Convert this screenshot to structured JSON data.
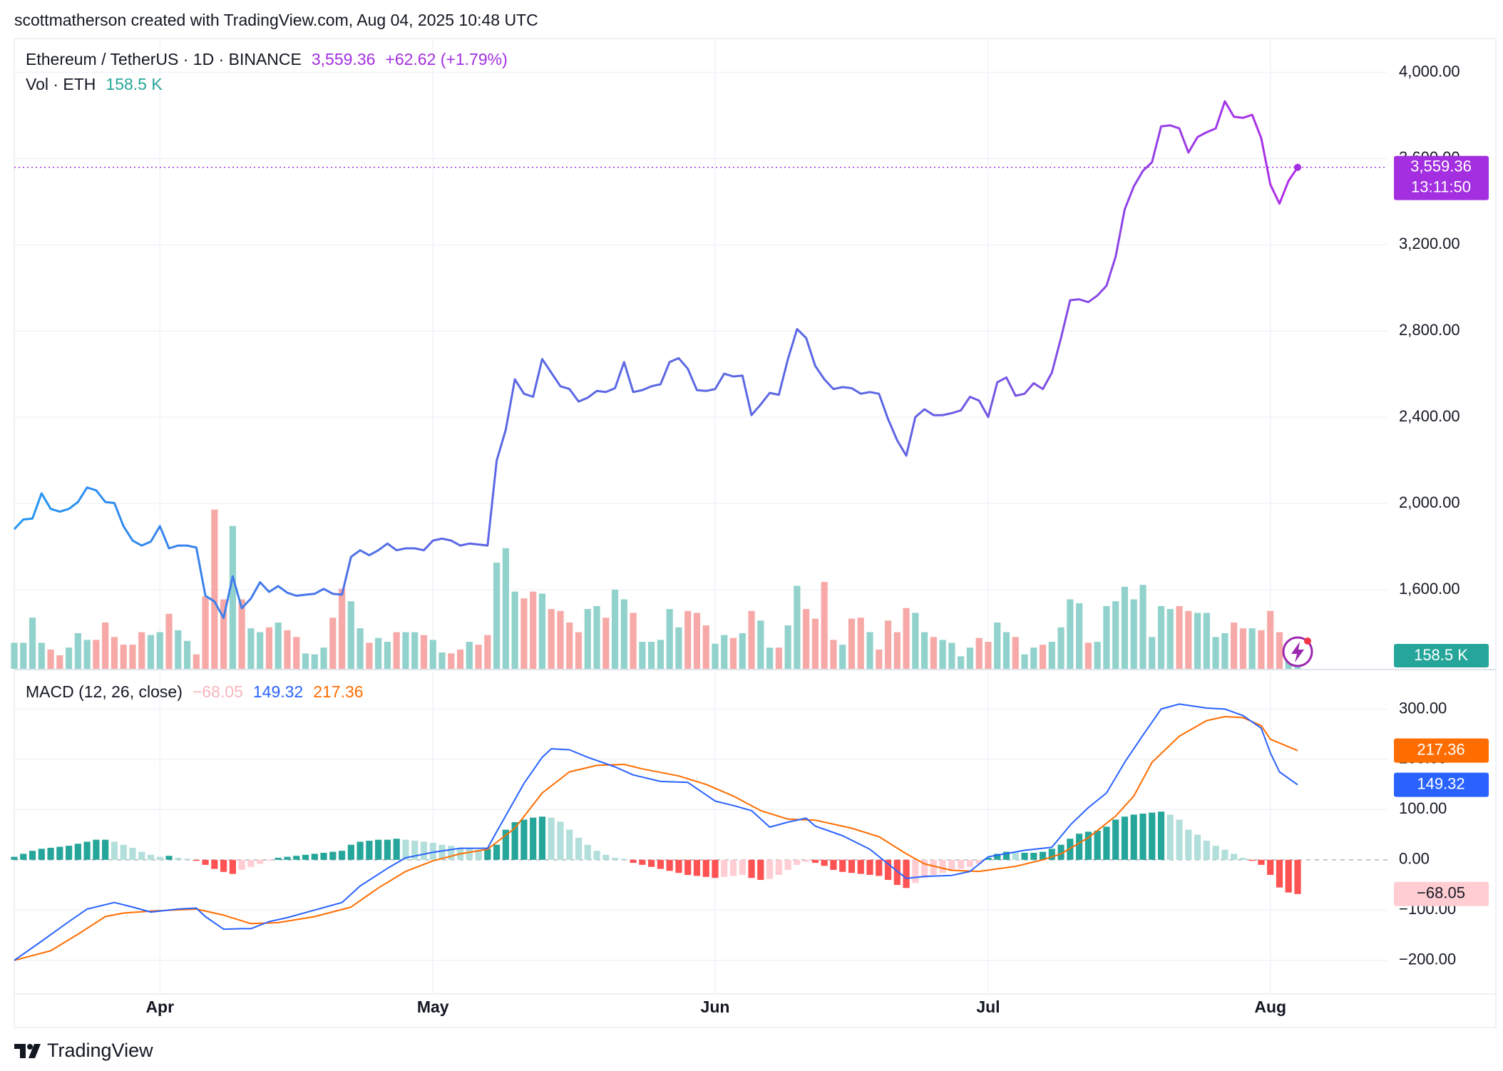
{
  "header": "scottmatherson created with TradingView.com, Aug 04, 2025 10:48 UTC",
  "footer_brand": "TradingView",
  "chart_data": [
    {
      "type": "line",
      "title": "Ethereum / TetherUS · 1D · BINANCE",
      "change_label": "+62.62 (+1.79%)",
      "countdown": "13:11:50",
      "xlim": [
        0,
        141
      ],
      "ylim": [
        1233,
        4157
      ],
      "yticks": [
        {
          "value": 1600,
          "label": "1,600.00"
        },
        {
          "value": 2000,
          "label": "2,000.00"
        },
        {
          "value": 2400,
          "label": "2,400.00"
        },
        {
          "value": 2800,
          "label": "2,800.00"
        },
        {
          "value": 3200,
          "label": "3,200.00"
        },
        {
          "value": 3600,
          "label": "3,600.00"
        },
        {
          "value": 4000,
          "label": "4,000.00"
        }
      ],
      "grid": true,
      "price": {
        "colors": [
          "#2196f3",
          "#5b67e4",
          "#5b67e4",
          "#b12ce8"
        ],
        "badge_color": "#a32fe0",
        "last_label": "3,559.36",
        "values": [
          1881,
          1926,
          1930,
          2047,
          1975,
          1962,
          1975,
          2007,
          2074,
          2061,
          2007,
          2002,
          1895,
          1828,
          1805,
          1823,
          1895,
          1792,
          1805,
          1805,
          1796,
          1572,
          1545,
          1469,
          1662,
          1514,
          1559,
          1635,
          1590,
          1617,
          1586,
          1572,
          1577,
          1581,
          1604,
          1581,
          1577,
          1752,
          1783,
          1760,
          1783,
          1814,
          1783,
          1792,
          1792,
          1783,
          1828,
          1837,
          1828,
          1805,
          1814,
          1810,
          1805,
          2199,
          2343,
          2576,
          2509,
          2495,
          2670,
          2607,
          2544,
          2531,
          2473,
          2491,
          2522,
          2517,
          2535,
          2656,
          2517,
          2526,
          2544,
          2553,
          2656,
          2674,
          2625,
          2526,
          2522,
          2531,
          2602,
          2589,
          2593,
          2410,
          2459,
          2513,
          2504,
          2670,
          2809,
          2768,
          2638,
          2576,
          2531,
          2540,
          2535,
          2509,
          2517,
          2509,
          2392,
          2293,
          2222,
          2401,
          2437,
          2410,
          2410,
          2419,
          2432,
          2495,
          2477,
          2401,
          2562,
          2585,
          2500,
          2509,
          2558,
          2531,
          2607,
          2768,
          2943,
          2947,
          2934,
          2965,
          3010,
          3145,
          3364,
          3471,
          3543,
          3583,
          3749,
          3754,
          3740,
          3628,
          3700,
          3722,
          3740,
          3866,
          3794,
          3789,
          3803,
          3695,
          3480,
          3391,
          3496.74,
          3559.36
        ]
      },
      "volume": {
        "name": "Vol · ETH",
        "last_label": "158.5 K",
        "ylim": [
          0,
          16325
        ],
        "up_color": "#92d2cc",
        "down_color": "#f7a9a7",
        "badge_color": "#26a69a",
        "values": [
          675,
          675,
          1325,
          675,
          500,
          350,
          550,
          925,
          750,
          750,
          1200,
          825,
          625,
          625,
          950,
          875,
          950,
          1425,
          1000,
          725,
          375,
          1875,
          4125,
          1800,
          3700,
          1800,
          1050,
          950,
          1075,
          1200,
          1000,
          825,
          400,
          375,
          550,
          1325,
          2075,
          1750,
          1050,
          675,
          800,
          700,
          950,
          950,
          950,
          875,
          750,
          425,
          400,
          500,
          700,
          625,
          875,
          2750,
          3125,
          2000,
          1825,
          2000,
          1950,
          1550,
          1500,
          1200,
          950,
          1550,
          1625,
          1325,
          2050,
          1800,
          1450,
          700,
          700,
          750,
          1550,
          1075,
          1500,
          1450,
          1125,
          650,
          875,
          800,
          925,
          1500,
          1250,
          550,
          550,
          1125,
          2150,
          1550,
          1300,
          2250,
          750,
          625,
          1300,
          1325,
          950,
          500,
          1250,
          950,
          1575,
          1450,
          950,
          825,
          750,
          675,
          325,
          550,
          800,
          700,
          1200,
          950,
          825,
          375,
          550,
          625,
          700,
          1075,
          1800,
          1700,
          675,
          700,
          1625,
          1750,
          2125,
          1800,
          2175,
          825,
          1625,
          1550,
          1625,
          1500,
          1450,
          1450,
          825,
          925,
          1200,
          1050,
          1050,
          1000,
          1500,
          950,
          350,
          158.5
        ]
      }
    },
    {
      "type": "macd",
      "title": "MACD (12, 26, close)",
      "xlim": [
        0,
        141
      ],
      "xticks": [
        {
          "value": 16,
          "label": "Apr"
        },
        {
          "value": 46,
          "label": "May"
        },
        {
          "value": 77,
          "label": "Jun"
        },
        {
          "value": 107,
          "label": "Jul"
        },
        {
          "value": 138,
          "label": "Aug"
        }
      ],
      "ylim": [
        -267,
        373
      ],
      "yticks": [
        {
          "value": -200,
          "label": "−200.00"
        },
        {
          "value": -100,
          "label": "−100.00"
        },
        {
          "value": 0,
          "label": "0.00"
        },
        {
          "value": 100,
          "label": "100.00"
        },
        {
          "value": 200,
          "label": "200.00"
        },
        {
          "value": 300,
          "label": "300.00"
        }
      ],
      "histogram": {
        "last_label": "−68.05",
        "colors": {
          "up_strong": "#26a69a",
          "up_weak": "#b2dfdb",
          "down_strong": "#ff5252",
          "down_weak": "#ffcdd2"
        },
        "values": [
          6,
          12,
          18,
          22,
          24,
          26,
          28,
          32,
          36,
          40,
          40,
          36,
          30,
          24,
          16,
          10,
          6,
          8,
          4,
          2,
          -2,
          -10,
          -18,
          -24,
          -28,
          -20,
          -14,
          -8,
          -2,
          4,
          6,
          8,
          10,
          12,
          14,
          16,
          18,
          30,
          36,
          38,
          40,
          40,
          42,
          40,
          38,
          36,
          34,
          30,
          28,
          24,
          22,
          20,
          22,
          30,
          60,
          75,
          80,
          84,
          86,
          84,
          76,
          60,
          44,
          30,
          18,
          10,
          4,
          2,
          -6,
          -10,
          -14,
          -18,
          -22,
          -26,
          -30,
          -32,
          -34,
          -36,
          -34,
          -32,
          -30,
          -36,
          -40,
          -38,
          -30,
          -20,
          -10,
          -4,
          -6,
          -12,
          -20,
          -24,
          -26,
          -28,
          -30,
          -32,
          -40,
          -50,
          -56,
          -46,
          -36,
          -30,
          -26,
          -22,
          -18,
          -14,
          -8,
          4,
          12,
          16,
          14,
          14,
          14,
          16,
          22,
          30,
          42,
          52,
          56,
          58,
          66,
          80,
          86,
          90,
          92,
          94,
          96,
          90,
          80,
          60,
          50,
          38,
          28,
          20,
          12,
          4,
          -2,
          -10,
          -30,
          -55,
          -65,
          -68.05
        ]
      },
      "macd": {
        "color": "#2962ff",
        "x": [
          0,
          3,
          6,
          8,
          11,
          13,
          15,
          18,
          20,
          21,
          23,
          25,
          26,
          28,
          30,
          33,
          36,
          38,
          41,
          43,
          46,
          49,
          52,
          53,
          56,
          58,
          59,
          61,
          63,
          66,
          68,
          71,
          74,
          77,
          79,
          81,
          83,
          85,
          87,
          88,
          91,
          94,
          96,
          98,
          100,
          103,
          105,
          107,
          111,
          114,
          116,
          118,
          120,
          122,
          124,
          126,
          128,
          131,
          133,
          135,
          137,
          138,
          139,
          141
        ],
        "values": [
          -200,
          -162,
          -123,
          -98,
          -85,
          -94,
          -104,
          -98,
          -96,
          -113,
          -138,
          -137,
          -137,
          -123,
          -115,
          -100,
          -85,
          -52,
          -17,
          4,
          15,
          23,
          23,
          56,
          152,
          204,
          221,
          219,
          204,
          185,
          169,
          156,
          154,
          117,
          108,
          98,
          65,
          75,
          83,
          67,
          48,
          21,
          -8,
          -37,
          -33,
          -31,
          -23,
          6,
          19,
          25,
          69,
          104,
          133,
          194,
          248,
          300,
          310,
          302,
          300,
          287,
          262,
          213,
          175,
          149.32
        ]
      },
      "signal": {
        "color": "#ff6d00",
        "x": [
          0,
          4,
          7,
          10,
          12,
          15,
          20,
          23,
          26,
          29,
          33,
          37,
          40,
          43,
          46,
          49,
          52,
          55,
          58,
          61,
          64,
          67,
          69,
          73,
          76,
          79,
          82,
          85,
          88,
          92,
          95,
          98,
          100,
          103,
          106,
          110,
          113,
          115,
          118,
          121,
          123,
          125,
          128,
          131,
          133,
          135,
          137,
          138,
          141
        ],
        "values": [
          -200,
          -181,
          -148,
          -113,
          -106,
          -102,
          -98,
          -110,
          -127,
          -125,
          -113,
          -94,
          -56,
          -23,
          -2,
          12,
          21,
          63,
          133,
          175,
          188,
          190,
          181,
          167,
          150,
          127,
          98,
          81,
          79,
          63,
          46,
          12,
          -8,
          -21,
          -23,
          -13,
          0,
          12,
          44,
          87,
          127,
          194,
          246,
          277,
          285,
          283,
          267,
          240,
          217.36
        ]
      }
    }
  ]
}
